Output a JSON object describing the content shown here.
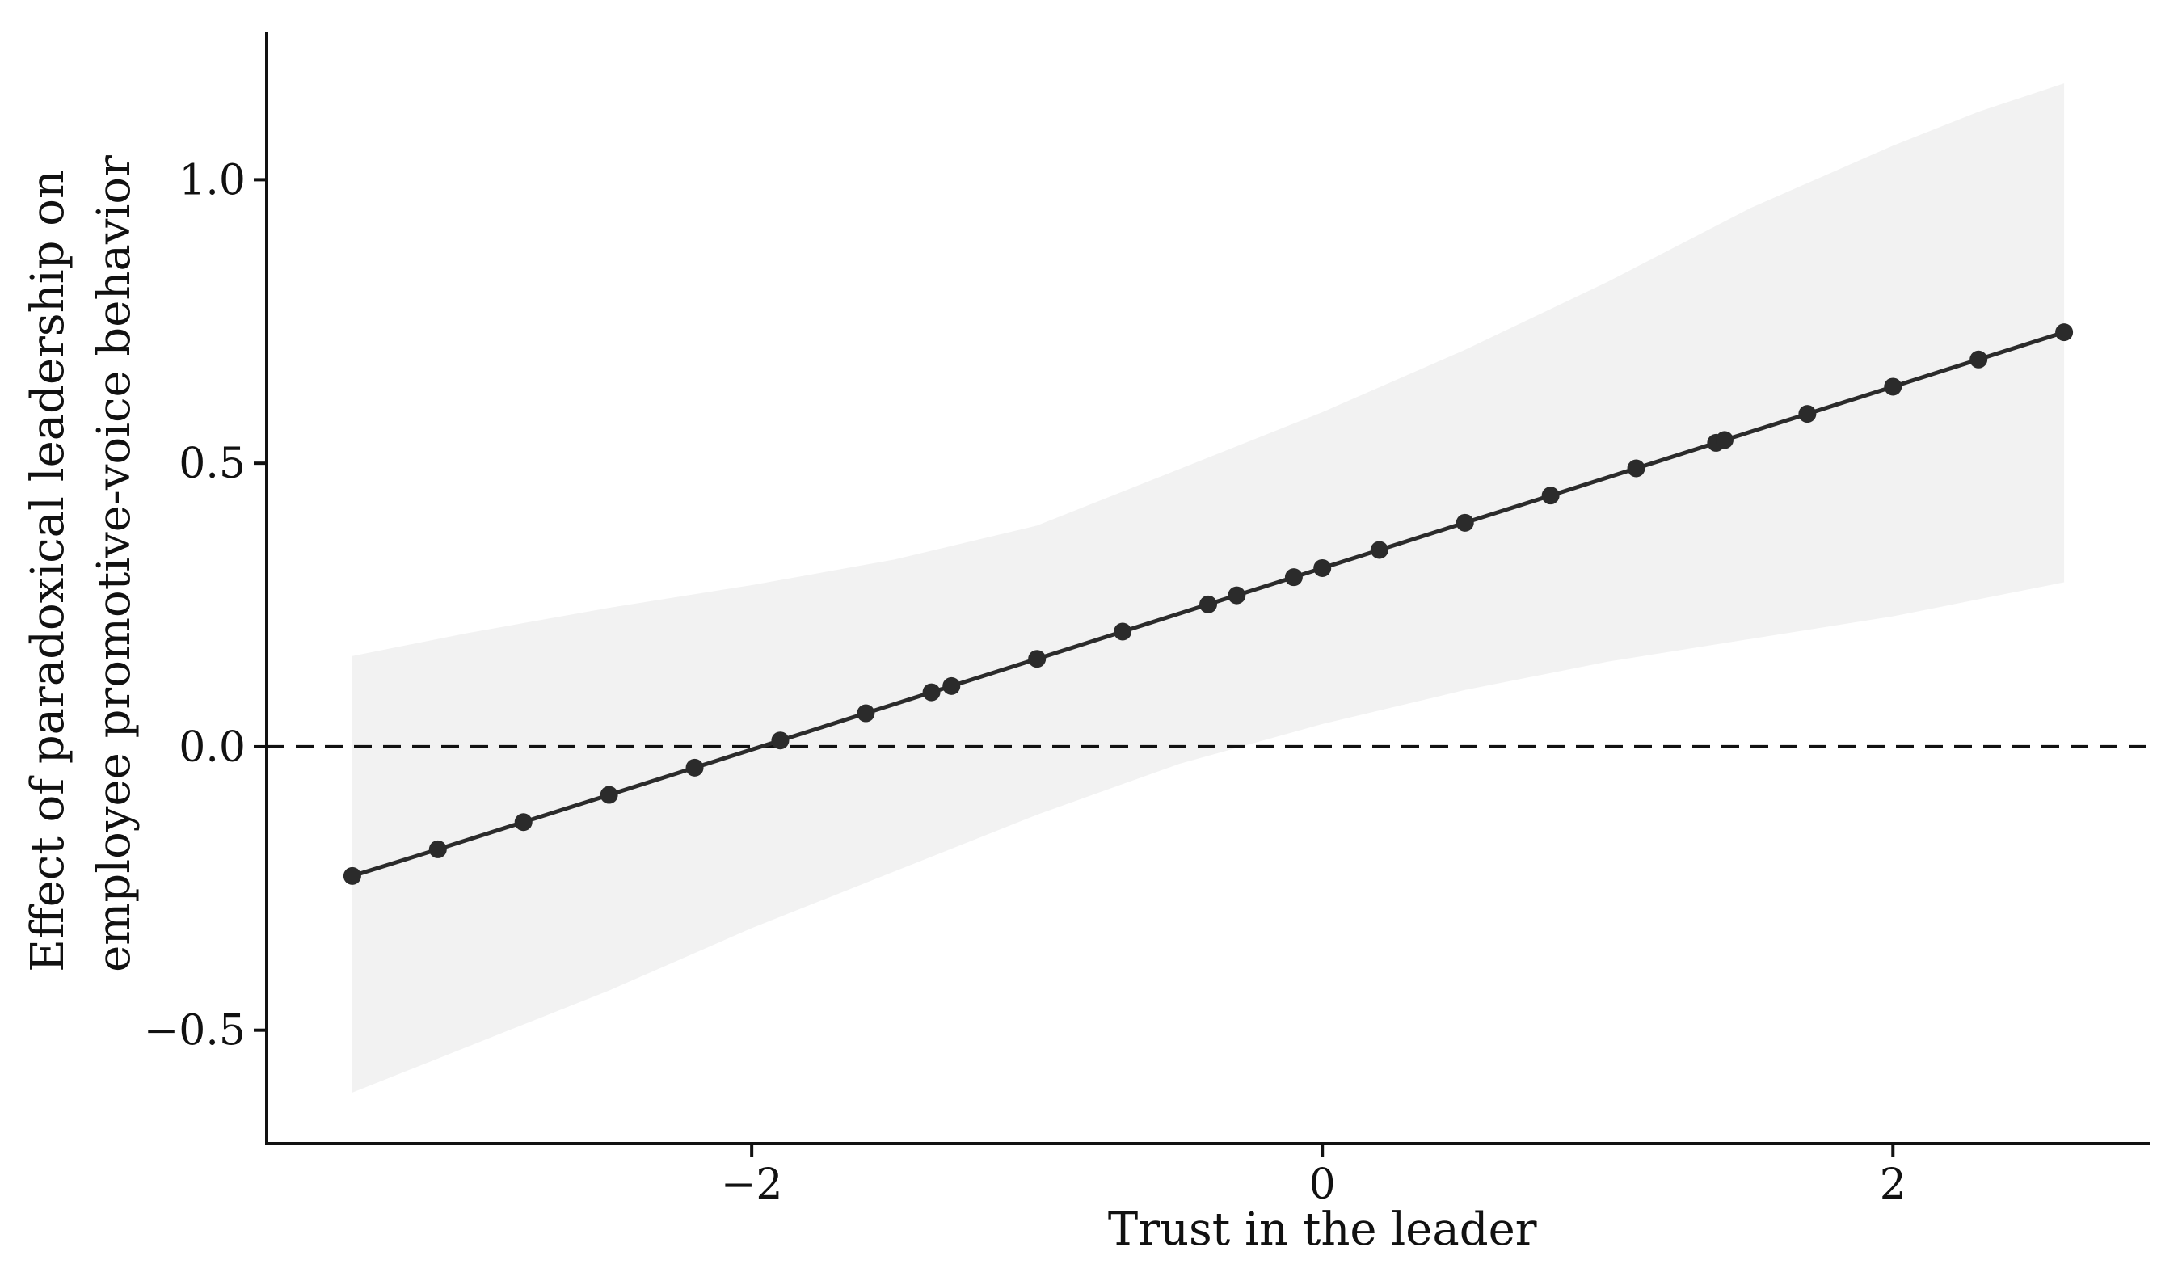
{
  "chart_data": {
    "type": "line",
    "title": "",
    "xlabel": "Trust in the leader",
    "ylabel": [
      "Effect of paradoxical leadership on",
      "employee promotive-voice behavior"
    ],
    "xlim": [
      -3.7,
      2.9
    ],
    "ylim": [
      -0.7,
      1.26
    ],
    "x_ticks": [
      {
        "value": -2,
        "label": "−2"
      },
      {
        "value": 0,
        "label": "0"
      },
      {
        "value": 2,
        "label": "2"
      }
    ],
    "y_ticks": [
      {
        "value": -0.5,
        "label": "−0.5"
      },
      {
        "value": 0.0,
        "label": "0.0"
      },
      {
        "value": 0.5,
        "label": "0.5"
      },
      {
        "value": 1.0,
        "label": "1.0"
      }
    ],
    "reference_line": {
      "y": 0.0,
      "style": "dashed"
    },
    "grid": false,
    "series": [
      {
        "style": "line-with-points",
        "color": "#2b2b2b",
        "x": [
          -3.4,
          -3.1,
          -2.8,
          -2.5,
          -2.2,
          -1.9,
          -1.6,
          -1.37,
          -1.3,
          -1.0,
          -0.7,
          -0.4,
          -0.3,
          -0.1,
          0.0,
          0.2,
          0.5,
          0.8,
          1.1,
          1.38,
          1.41,
          1.7,
          2.0,
          2.3,
          2.6
        ],
        "y": [
          -0.228,
          -0.181,
          -0.133,
          -0.085,
          -0.037,
          0.011,
          0.059,
          0.096,
          0.107,
          0.155,
          0.203,
          0.251,
          0.267,
          0.299,
          0.315,
          0.347,
          0.395,
          0.443,
          0.491,
          0.536,
          0.541,
          0.587,
          0.635,
          0.683,
          0.731
        ]
      }
    ],
    "confidence_band": {
      "color": "#f2f2f2",
      "x": [
        -3.4,
        -3.0,
        -2.5,
        -2.0,
        -1.5,
        -1.0,
        -0.5,
        0.0,
        0.5,
        1.0,
        1.5,
        2.0,
        2.3,
        2.6
      ],
      "lower": [
        -0.61,
        -0.53,
        -0.43,
        -0.32,
        -0.22,
        -0.12,
        -0.03,
        0.04,
        0.1,
        0.15,
        0.19,
        0.23,
        0.26,
        0.29
      ],
      "upper": [
        0.16,
        0.2,
        0.245,
        0.285,
        0.33,
        0.39,
        0.49,
        0.59,
        0.7,
        0.82,
        0.95,
        1.06,
        1.12,
        1.17
      ]
    }
  }
}
